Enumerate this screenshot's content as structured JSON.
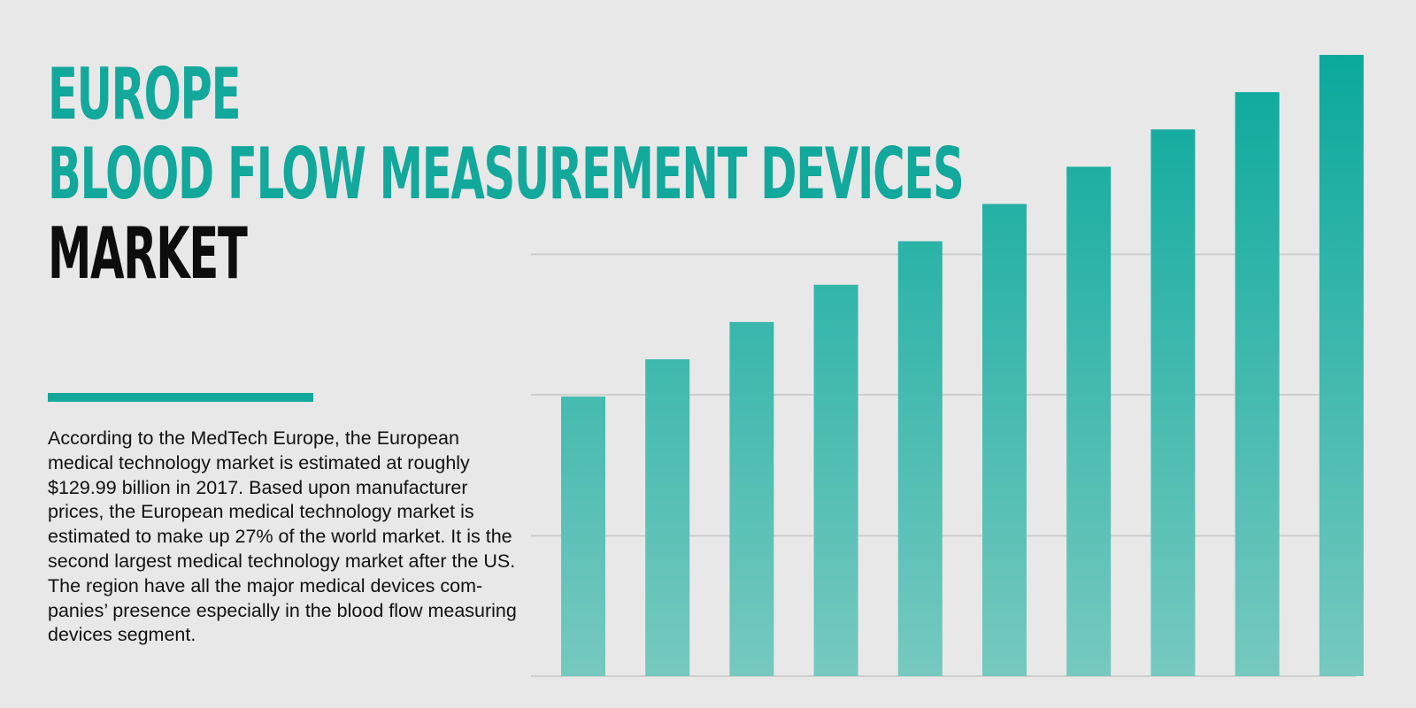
{
  "title": {
    "line1": "EUROPE",
    "line2": "BLOOD FLOW MEASUREMENT DEVICES",
    "line3": "MARKET"
  },
  "description": "According to the MedTech Europe, the European medical technology market is estimated at roughly $129.99 billion in 2017. Based upon manufacturer prices, the European medical technology market is estimated to make up 27% of the world market. It is the second largest medical technology market after the US. The region have all the major medical devices com-panies’ presence especially in the blood flow measuring devices segment.",
  "colors": {
    "accent": "#12a89b",
    "bar_top": "#0aa99c",
    "bar_bottom": "#76c9bf",
    "gridline": "#cfcfcf",
    "background": "#e8e8e8"
  },
  "chart_data": {
    "type": "bar",
    "values": [
      45,
      51,
      57,
      63,
      70,
      76,
      82,
      88,
      94,
      100
    ],
    "ylim": [
      0,
      100
    ],
    "gridlines": [
      0,
      22.6,
      45.3,
      67.9
    ],
    "grid": true
  }
}
